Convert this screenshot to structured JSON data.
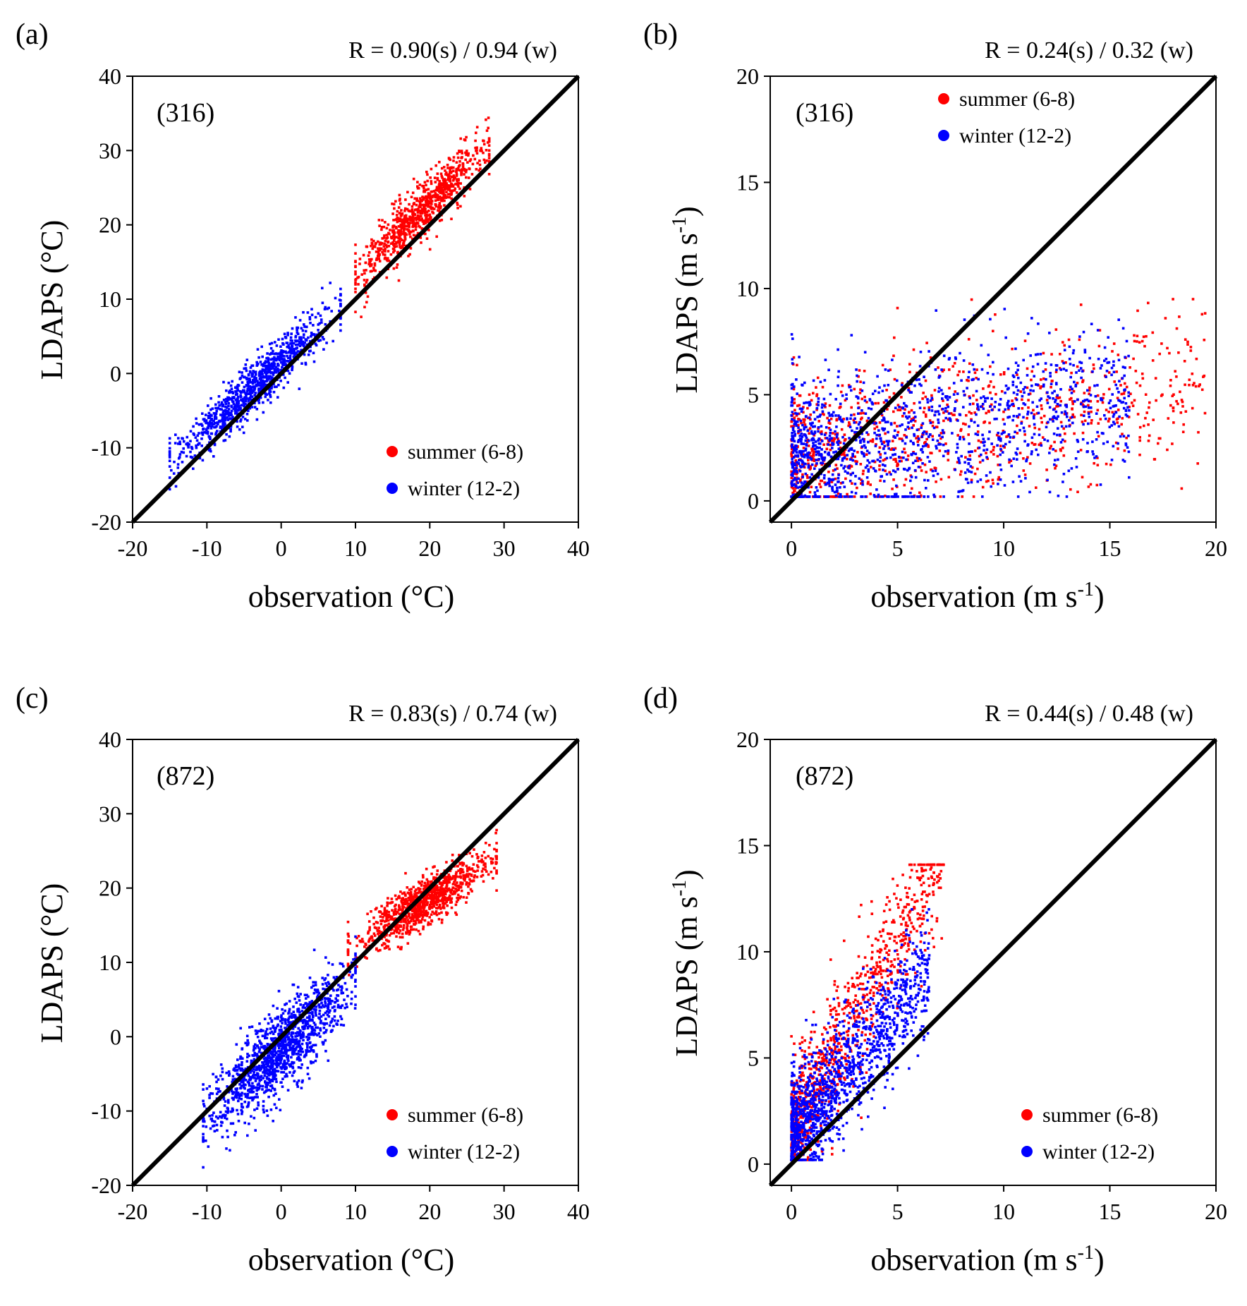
{
  "figure": {
    "legend_summer": "summer (6-8)",
    "legend_winter": "winter  (12-2)",
    "colors": {
      "summer": "#ff0000",
      "winter": "#0000ff",
      "one_to_one": "#000000"
    }
  },
  "chart_data": [
    {
      "type": "scatter",
      "panel": "(a)",
      "station": "(316)",
      "r_text": "R = 0.90(s) / 0.94 (w)",
      "variable": "temperature",
      "xlabel": "observation  (°C)",
      "ylabel": "LDAPS (°C)",
      "xlim": [
        -20,
        40
      ],
      "ylim": [
        -20,
        40
      ],
      "xticks": [
        -20,
        -10,
        0,
        10,
        20,
        30,
        40
      ],
      "yticks": [
        -20,
        -10,
        0,
        10,
        20,
        30,
        40
      ],
      "reference_line": "1:1",
      "legend_position": "bottom-right",
      "series": [
        {
          "name": "summer (6-8)",
          "color": "#ff0000",
          "n": 900,
          "x_range": [
            10,
            28
          ],
          "fit": {
            "slope": 1.0,
            "intercept": 3.0
          },
          "spread": 1.8
        },
        {
          "name": "winter  (12-2)",
          "color": "#0000ff",
          "n": 1000,
          "x_range": [
            -15,
            8
          ],
          "fit": {
            "slope": 0.9,
            "intercept": 1.5
          },
          "spread": 1.6
        }
      ]
    },
    {
      "type": "scatter",
      "panel": "(b)",
      "station": "(316)",
      "r_text": "R = 0.24(s) / 0.32 (w)",
      "variable": "wind speed",
      "xlabel": "observation  (m s-1)",
      "ylabel": "LDAPS (m s-1)",
      "xlim": [
        -1,
        20
      ],
      "ylim": [
        -1,
        20
      ],
      "xticks": [
        0,
        5,
        10,
        15,
        20
      ],
      "yticks": [
        0,
        5,
        10,
        15,
        20
      ],
      "reference_line": "1:1",
      "legend_position": "top-right",
      "series": [
        {
          "name": "summer (6-8)",
          "color": "#ff0000",
          "n": 1000,
          "x_range": [
            0,
            19.5
          ],
          "y_range": [
            0.2,
            9.5
          ],
          "fit": {
            "slope": 0.2,
            "intercept": 1.8
          },
          "spread": 1.8
        },
        {
          "name": "winter  (12-2)",
          "color": "#0000ff",
          "n": 1300,
          "x_range": [
            0,
            16
          ],
          "y_range": [
            0.2,
            9.6
          ],
          "fit": {
            "slope": 0.2,
            "intercept": 2.0
          },
          "spread": 1.8
        }
      ]
    },
    {
      "type": "scatter",
      "panel": "(c)",
      "station": "(872)",
      "r_text": "R = 0.83(s) / 0.74 (w)",
      "variable": "temperature",
      "xlabel": "observation  (°C)",
      "ylabel": "LDAPS (°C)",
      "xlim": [
        -20,
        40
      ],
      "ylim": [
        -20,
        40
      ],
      "xticks": [
        -20,
        -10,
        0,
        10,
        20,
        30,
        40
      ],
      "yticks": [
        -20,
        -10,
        0,
        10,
        20,
        30,
        40
      ],
      "reference_line": "1:1",
      "legend_position": "bottom-right",
      "series": [
        {
          "name": "summer (6-8)",
          "color": "#ff0000",
          "n": 1000,
          "x_range": [
            9,
            29
          ],
          "fit": {
            "slope": 0.6,
            "intercept": 6.5
          },
          "spread": 1.6
        },
        {
          "name": "winter  (12-2)",
          "color": "#0000ff",
          "n": 1300,
          "x_range": [
            -10.5,
            10
          ],
          "fit": {
            "slope": 0.9,
            "intercept": -1.5
          },
          "spread": 2.8
        }
      ]
    },
    {
      "type": "scatter",
      "panel": "(d)",
      "station": "(872)",
      "r_text": "R = 0.44(s) / 0.48 (w)",
      "variable": "wind speed",
      "xlabel": "observation  (m s-1)",
      "ylabel": "LDAPS (m s-1)",
      "xlim": [
        -1,
        20
      ],
      "ylim": [
        -1,
        20
      ],
      "xticks": [
        0,
        5,
        10,
        15,
        20
      ],
      "yticks": [
        0,
        5,
        10,
        15,
        20
      ],
      "reference_line": "1:1",
      "legend_position": "bottom-right",
      "series": [
        {
          "name": "summer (6-8)",
          "color": "#ff0000",
          "n": 900,
          "x_range": [
            0,
            7.2
          ],
          "y_range": [
            0.2,
            14.1
          ],
          "fit": {
            "slope": 1.8,
            "intercept": 1.5
          },
          "spread": 1.5
        },
        {
          "name": "winter  (12-2)",
          "color": "#0000ff",
          "n": 1300,
          "x_range": [
            0,
            6.5
          ],
          "y_range": [
            0.2,
            12
          ],
          "fit": {
            "slope": 1.2,
            "intercept": 1.3
          },
          "spread": 1.4
        }
      ]
    }
  ]
}
